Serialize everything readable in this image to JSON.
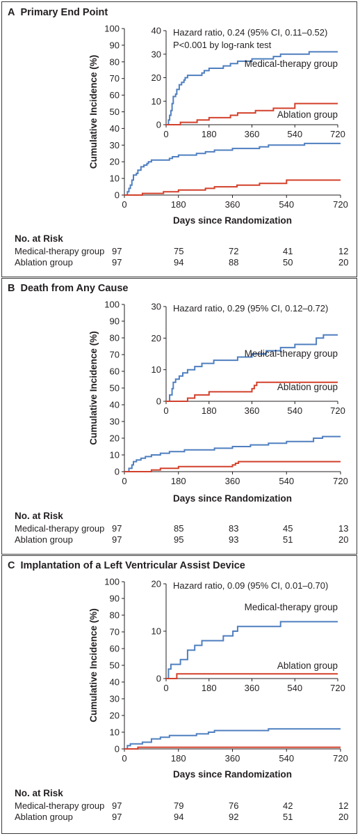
{
  "colors": {
    "medical": "#4f7fbf",
    "ablation": "#d2402b",
    "ink": "#231f20"
  },
  "chart_data": [
    {
      "type": "line",
      "panel_letter": "A",
      "title": "Primary End Point",
      "xlabel": "Days since Randomization",
      "ylabel": "Cumulative Incidence (%)",
      "x_ticks": [
        0,
        180,
        360,
        540,
        720
      ],
      "xlim": [
        0,
        720
      ],
      "ylim": [
        0,
        100
      ],
      "y_ticks": [
        0,
        10,
        20,
        30,
        40,
        50,
        60,
        70,
        80,
        90,
        100
      ],
      "grid": false,
      "inset": {
        "ylim": [
          0,
          40
        ],
        "y_ticks": [
          0,
          10,
          20,
          30,
          40
        ],
        "x_ticks": [
          0,
          180,
          360,
          540,
          720
        ],
        "annotation": [
          "Hazard ratio, 0.24 (95% CI, 0.11–0.52)",
          "P<0.001 by log-rank test"
        ],
        "series_labels": [
          "Medical-therapy group",
          "Ablation group"
        ]
      },
      "series": [
        {
          "name": "Medical-therapy group",
          "color": "#4f7fbf",
          "x": [
            0,
            10,
            15,
            20,
            25,
            30,
            40,
            45,
            55,
            65,
            75,
            80,
            90,
            110,
            150,
            160,
            180,
            240,
            270,
            300,
            330,
            360,
            450,
            480,
            540,
            600,
            720
          ],
          "y": [
            0,
            2,
            4,
            6,
            9,
            12,
            13,
            15,
            17,
            18,
            19,
            20,
            21,
            21,
            22,
            23,
            24,
            25,
            26,
            27,
            27,
            28,
            29,
            30,
            30,
            31,
            31
          ]
        },
        {
          "name": "Ablation group",
          "color": "#d2402b",
          "x": [
            0,
            60,
            130,
            180,
            270,
            300,
            360,
            375,
            450,
            540,
            720
          ],
          "y": [
            0,
            1,
            2,
            3,
            4,
            5,
            5,
            6,
            7,
            9,
            9
          ]
        }
      ],
      "risk_table": {
        "title": "No. at Risk",
        "rows": [
          {
            "group": "Medical-therapy group",
            "values": [
              "97",
              "75",
              "72",
              "41",
              "12"
            ]
          },
          {
            "group": "Ablation group",
            "values": [
              "97",
              "94",
              "88",
              "50",
              "20"
            ]
          }
        ]
      }
    },
    {
      "type": "line",
      "panel_letter": "B",
      "title": "Death from Any Cause",
      "xlabel": "Days since Randomization",
      "ylabel": "Cumulative Incidence (%)",
      "x_ticks": [
        0,
        180,
        360,
        540,
        720
      ],
      "xlim": [
        0,
        720
      ],
      "ylim": [
        0,
        100
      ],
      "y_ticks": [
        0,
        10,
        20,
        30,
        40,
        50,
        60,
        70,
        80,
        90,
        100
      ],
      "grid": false,
      "inset": {
        "ylim": [
          0,
          30
        ],
        "y_ticks": [
          0,
          10,
          20,
          30
        ],
        "x_ticks": [
          0,
          180,
          360,
          540,
          720
        ],
        "annotation": [
          "Hazard ratio, 0.29 (95% CI, 0.12–0.72)"
        ],
        "series_labels": [
          "Medical-therapy group",
          "Ablation group"
        ]
      },
      "series": [
        {
          "name": "Medical-therapy group",
          "color": "#4f7fbf",
          "x": [
            0,
            15,
            25,
            30,
            40,
            55,
            70,
            90,
            120,
            150,
            200,
            240,
            300,
            360,
            420,
            480,
            540,
            630,
            660,
            720
          ],
          "y": [
            0,
            2,
            4,
            6,
            7,
            8,
            9,
            10,
            11,
            12,
            13,
            13,
            14,
            15,
            16,
            17,
            18,
            20,
            21,
            21
          ]
        },
        {
          "name": "Ablation group",
          "color": "#d2402b",
          "x": [
            0,
            90,
            120,
            150,
            180,
            300,
            360,
            370,
            380,
            720
          ],
          "y": [
            0,
            1,
            2,
            2,
            3,
            3,
            4,
            5,
            6,
            6
          ]
        }
      ],
      "risk_table": {
        "title": "No. at Risk",
        "rows": [
          {
            "group": "Medical-therapy group",
            "values": [
              "97",
              "85",
              "83",
              "45",
              "13"
            ]
          },
          {
            "group": "Ablation group",
            "values": [
              "97",
              "95",
              "93",
              "51",
              "20"
            ]
          }
        ]
      }
    },
    {
      "type": "line",
      "panel_letter": "C",
      "title": "Implantation of a Left Ventricular Assist Device",
      "xlabel": "Days since Randomization",
      "ylabel": "Cumulative Incidence (%)",
      "x_ticks": [
        0,
        180,
        360,
        540,
        720
      ],
      "xlim": [
        0,
        720
      ],
      "ylim": [
        0,
        100
      ],
      "y_ticks": [
        0,
        10,
        20,
        30,
        40,
        50,
        60,
        70,
        80,
        90,
        100
      ],
      "grid": false,
      "inset": {
        "ylim": [
          0,
          20
        ],
        "y_ticks": [
          0,
          10,
          20
        ],
        "x_ticks": [
          0,
          180,
          360,
          540,
          720
        ],
        "annotation": [
          "Hazard ratio, 0.09 (95% CI, 0.01–0.70)"
        ],
        "series_labels": [
          "Medical-therapy group",
          "Ablation group"
        ]
      },
      "series": [
        {
          "name": "Medical-therapy group",
          "color": "#4f7fbf",
          "x": [
            0,
            10,
            20,
            60,
            90,
            120,
            150,
            240,
            280,
            300,
            480,
            720
          ],
          "y": [
            0,
            2,
            3,
            4,
            6,
            7,
            8,
            9,
            10,
            11,
            12,
            12
          ]
        },
        {
          "name": "Ablation group",
          "color": "#d2402b",
          "x": [
            0,
            45,
            720
          ],
          "y": [
            0,
            1,
            1
          ]
        }
      ],
      "risk_table": {
        "title": "No. at Risk",
        "rows": [
          {
            "group": "Medical-therapy group",
            "values": [
              "97",
              "79",
              "76",
              "42",
              "12"
            ]
          },
          {
            "group": "Ablation group",
            "values": [
              "97",
              "94",
              "92",
              "51",
              "20"
            ]
          }
        ]
      }
    }
  ]
}
